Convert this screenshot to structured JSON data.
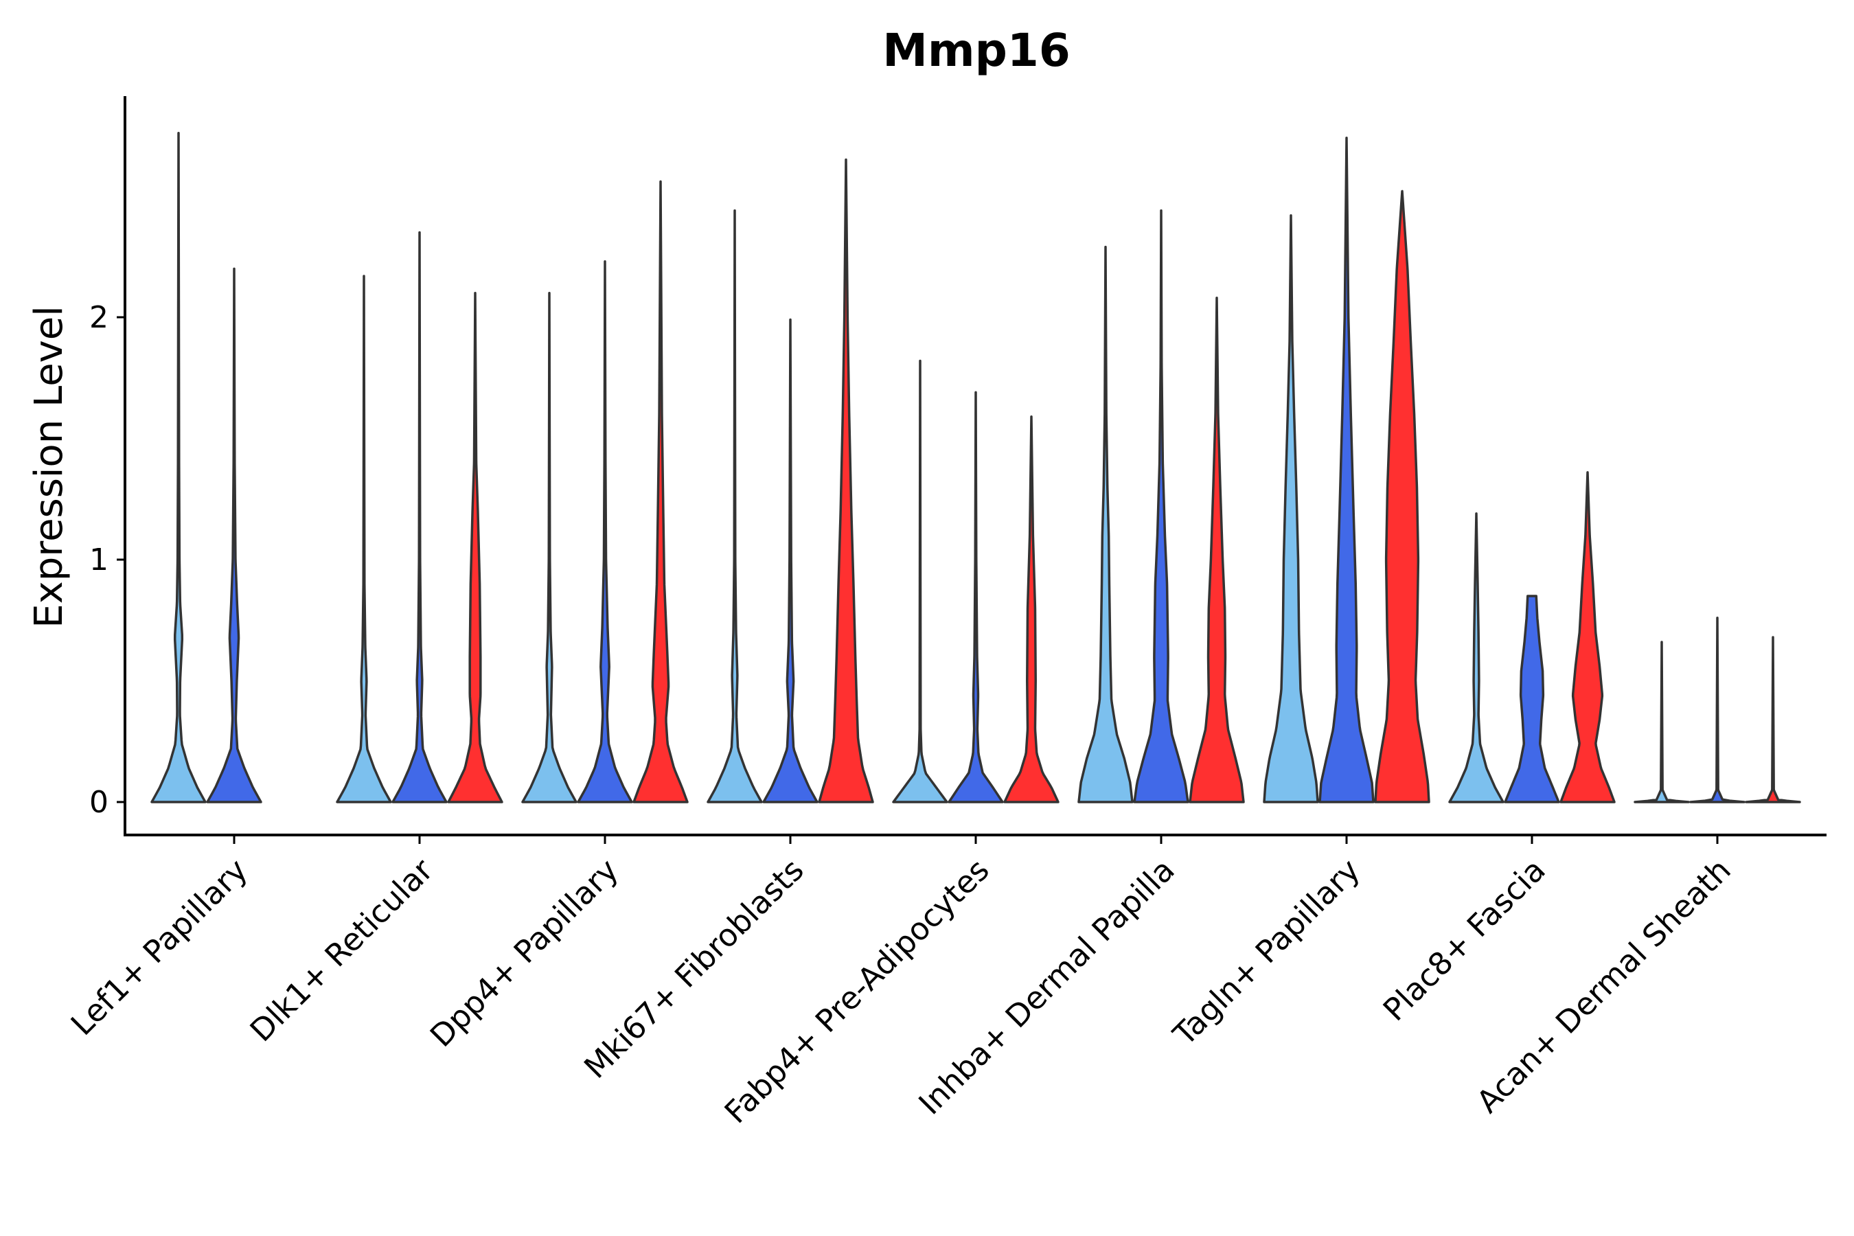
{
  "chart_data": {
    "type": "violin",
    "title": "Mmp16",
    "xlabel": "",
    "ylabel": "Expression Level",
    "ylim": [
      -0.14,
      2.92
    ],
    "yticks": [
      0,
      1,
      2
    ],
    "ytick_labels": [
      "0",
      "1",
      "2"
    ],
    "group_colors": {
      "group1": "#7CC0EE",
      "group2": "#4169E8",
      "group3": "#FF3030"
    },
    "categories": [
      "Lef1+ Papillary",
      "Dlk1+ Reticular",
      "Dpp4+ Papillary",
      "Mki67+ Fibroblasts",
      "Fabp4+ Pre-Adipocytes",
      "Inhba+ Dermal Papilla",
      "Tagln+ Papillary",
      "Plac8+ Fascia",
      "Acan+ Dermal Sheath"
    ],
    "violins": [
      {
        "category": "Lef1+ Papillary",
        "group": "group1",
        "max": 2.76,
        "profile": [
          [
            0,
            1.0
          ],
          [
            0.06,
            0.7
          ],
          [
            0.14,
            0.38
          ],
          [
            0.24,
            0.12
          ],
          [
            0.36,
            0.05
          ],
          [
            0.5,
            0.06
          ],
          [
            0.68,
            0.14
          ],
          [
            0.82,
            0.06
          ],
          [
            1.0,
            0.035
          ],
          [
            1.4,
            0.02
          ],
          [
            2.0,
            0.012
          ],
          [
            2.76,
            0.0
          ]
        ]
      },
      {
        "category": "Lef1+ Papillary",
        "group": "group2",
        "max": 2.2,
        "profile": [
          [
            0,
            1.0
          ],
          [
            0.06,
            0.7
          ],
          [
            0.14,
            0.38
          ],
          [
            0.22,
            0.12
          ],
          [
            0.34,
            0.06
          ],
          [
            0.5,
            0.1
          ],
          [
            0.68,
            0.17
          ],
          [
            0.82,
            0.11
          ],
          [
            1.0,
            0.05
          ],
          [
            1.4,
            0.02
          ],
          [
            2.2,
            0.0
          ]
        ]
      },
      {
        "category": "Dlk1+ Reticular",
        "group": "group1",
        "max": 2.17,
        "profile": [
          [
            0,
            1.0
          ],
          [
            0.06,
            0.7
          ],
          [
            0.14,
            0.38
          ],
          [
            0.22,
            0.12
          ],
          [
            0.36,
            0.06
          ],
          [
            0.5,
            0.1
          ],
          [
            0.64,
            0.05
          ],
          [
            0.9,
            0.02
          ],
          [
            2.17,
            0.0
          ]
        ]
      },
      {
        "category": "Dlk1+ Reticular",
        "group": "group2",
        "max": 2.35,
        "profile": [
          [
            0,
            1.0
          ],
          [
            0.06,
            0.7
          ],
          [
            0.14,
            0.38
          ],
          [
            0.22,
            0.12
          ],
          [
            0.36,
            0.06
          ],
          [
            0.5,
            0.1
          ],
          [
            0.64,
            0.05
          ],
          [
            1.0,
            0.02
          ],
          [
            2.35,
            0.0
          ]
        ]
      },
      {
        "category": "Dlk1+ Reticular",
        "group": "group3",
        "max": 2.1,
        "profile": [
          [
            0,
            1.0
          ],
          [
            0.06,
            0.72
          ],
          [
            0.14,
            0.38
          ],
          [
            0.24,
            0.18
          ],
          [
            0.34,
            0.14
          ],
          [
            0.44,
            0.2
          ],
          [
            0.6,
            0.2
          ],
          [
            0.9,
            0.17
          ],
          [
            1.2,
            0.1
          ],
          [
            1.4,
            0.04
          ],
          [
            2.1,
            0.0
          ]
        ]
      },
      {
        "category": "Dpp4+ Papillary",
        "group": "group1",
        "max": 2.1,
        "profile": [
          [
            0,
            1.0
          ],
          [
            0.06,
            0.7
          ],
          [
            0.14,
            0.38
          ],
          [
            0.22,
            0.12
          ],
          [
            0.36,
            0.06
          ],
          [
            0.56,
            0.1
          ],
          [
            0.7,
            0.05
          ],
          [
            1.0,
            0.02
          ],
          [
            2.1,
            0.0
          ]
        ]
      },
      {
        "category": "Dpp4+ Papillary",
        "group": "group2",
        "max": 2.23,
        "profile": [
          [
            0,
            1.0
          ],
          [
            0.06,
            0.7
          ],
          [
            0.14,
            0.38
          ],
          [
            0.24,
            0.14
          ],
          [
            0.36,
            0.08
          ],
          [
            0.56,
            0.16
          ],
          [
            0.72,
            0.1
          ],
          [
            1.0,
            0.04
          ],
          [
            1.4,
            0.02
          ],
          [
            2.23,
            0.0
          ]
        ]
      },
      {
        "category": "Dpp4+ Papillary",
        "group": "group3",
        "max": 2.56,
        "profile": [
          [
            0,
            1.0
          ],
          [
            0.06,
            0.8
          ],
          [
            0.14,
            0.5
          ],
          [
            0.24,
            0.26
          ],
          [
            0.34,
            0.2
          ],
          [
            0.48,
            0.3
          ],
          [
            0.62,
            0.25
          ],
          [
            0.9,
            0.14
          ],
          [
            1.2,
            0.1
          ],
          [
            1.6,
            0.05
          ],
          [
            2.56,
            0.0
          ]
        ]
      },
      {
        "category": "Mki67+ Fibroblasts",
        "group": "group1",
        "max": 2.44,
        "profile": [
          [
            0,
            1.0
          ],
          [
            0.06,
            0.7
          ],
          [
            0.14,
            0.38
          ],
          [
            0.22,
            0.12
          ],
          [
            0.36,
            0.06
          ],
          [
            0.52,
            0.1
          ],
          [
            0.7,
            0.05
          ],
          [
            1.0,
            0.02
          ],
          [
            2.44,
            0.0
          ]
        ]
      },
      {
        "category": "Mki67+ Fibroblasts",
        "group": "group2",
        "max": 1.99,
        "profile": [
          [
            0,
            1.0
          ],
          [
            0.06,
            0.7
          ],
          [
            0.14,
            0.38
          ],
          [
            0.22,
            0.12
          ],
          [
            0.36,
            0.06
          ],
          [
            0.5,
            0.12
          ],
          [
            0.66,
            0.06
          ],
          [
            1.0,
            0.03
          ],
          [
            1.99,
            0.0
          ]
        ]
      },
      {
        "category": "Mki67+ Fibroblasts",
        "group": "group3",
        "max": 2.65,
        "profile": [
          [
            0,
            1.0
          ],
          [
            0.06,
            0.85
          ],
          [
            0.14,
            0.62
          ],
          [
            0.26,
            0.45
          ],
          [
            0.42,
            0.4
          ],
          [
            0.6,
            0.35
          ],
          [
            0.9,
            0.28
          ],
          [
            1.2,
            0.2
          ],
          [
            1.6,
            0.12
          ],
          [
            2.0,
            0.06
          ],
          [
            2.65,
            0.0
          ]
        ]
      },
      {
        "category": "Fabp4+ Pre-Adipocytes",
        "group": "group1",
        "max": 1.82,
        "profile": [
          [
            0,
            1.0
          ],
          [
            0.06,
            0.6
          ],
          [
            0.12,
            0.2
          ],
          [
            0.2,
            0.05
          ],
          [
            0.3,
            0.02
          ],
          [
            1.82,
            0.0
          ]
        ]
      },
      {
        "category": "Fabp4+ Pre-Adipocytes",
        "group": "group2",
        "max": 1.69,
        "profile": [
          [
            0,
            1.0
          ],
          [
            0.06,
            0.64
          ],
          [
            0.12,
            0.26
          ],
          [
            0.2,
            0.1
          ],
          [
            0.3,
            0.06
          ],
          [
            0.44,
            0.09
          ],
          [
            0.6,
            0.05
          ],
          [
            1.0,
            0.02
          ],
          [
            1.69,
            0.0
          ]
        ]
      },
      {
        "category": "Fabp4+ Pre-Adipocytes",
        "group": "group3",
        "max": 1.59,
        "profile": [
          [
            0,
            1.0
          ],
          [
            0.06,
            0.75
          ],
          [
            0.12,
            0.42
          ],
          [
            0.2,
            0.2
          ],
          [
            0.3,
            0.14
          ],
          [
            0.5,
            0.16
          ],
          [
            0.8,
            0.14
          ],
          [
            1.1,
            0.06
          ],
          [
            1.59,
            0.0
          ]
        ]
      },
      {
        "category": "Inhba+ Dermal Papilla",
        "group": "group1",
        "max": 2.29,
        "profile": [
          [
            0,
            1.0
          ],
          [
            0.08,
            0.92
          ],
          [
            0.18,
            0.7
          ],
          [
            0.28,
            0.42
          ],
          [
            0.42,
            0.22
          ],
          [
            0.6,
            0.18
          ],
          [
            0.9,
            0.14
          ],
          [
            1.1,
            0.12
          ],
          [
            1.3,
            0.07
          ],
          [
            1.6,
            0.03
          ],
          [
            2.29,
            0.0
          ]
        ]
      },
      {
        "category": "Inhba+ Dermal Papilla",
        "group": "group2",
        "max": 2.44,
        "profile": [
          [
            0,
            1.0
          ],
          [
            0.08,
            0.9
          ],
          [
            0.18,
            0.66
          ],
          [
            0.28,
            0.4
          ],
          [
            0.42,
            0.24
          ],
          [
            0.6,
            0.26
          ],
          [
            0.9,
            0.22
          ],
          [
            1.1,
            0.14
          ],
          [
            1.4,
            0.06
          ],
          [
            1.8,
            0.02
          ],
          [
            2.44,
            0.0
          ]
        ]
      },
      {
        "category": "Inhba+ Dermal Papilla",
        "group": "group3",
        "max": 2.08,
        "profile": [
          [
            0,
            1.0
          ],
          [
            0.08,
            0.92
          ],
          [
            0.18,
            0.7
          ],
          [
            0.3,
            0.42
          ],
          [
            0.44,
            0.3
          ],
          [
            0.6,
            0.32
          ],
          [
            0.8,
            0.3
          ],
          [
            1.0,
            0.22
          ],
          [
            1.3,
            0.13
          ],
          [
            1.6,
            0.05
          ],
          [
            2.08,
            0.0
          ]
        ]
      },
      {
        "category": "Tagln+ Papillary",
        "group": "group1",
        "max": 2.42,
        "profile": [
          [
            0,
            1.0
          ],
          [
            0.08,
            0.95
          ],
          [
            0.18,
            0.8
          ],
          [
            0.3,
            0.55
          ],
          [
            0.46,
            0.36
          ],
          [
            0.7,
            0.3
          ],
          [
            1.0,
            0.27
          ],
          [
            1.3,
            0.2
          ],
          [
            1.6,
            0.12
          ],
          [
            1.9,
            0.05
          ],
          [
            2.42,
            0.0
          ]
        ]
      },
      {
        "category": "Tagln+ Papillary",
        "group": "group2",
        "max": 2.74,
        "profile": [
          [
            0,
            1.0
          ],
          [
            0.08,
            0.95
          ],
          [
            0.18,
            0.75
          ],
          [
            0.3,
            0.5
          ],
          [
            0.44,
            0.36
          ],
          [
            0.64,
            0.38
          ],
          [
            0.9,
            0.34
          ],
          [
            1.2,
            0.26
          ],
          [
            1.6,
            0.16
          ],
          [
            2.0,
            0.07
          ],
          [
            2.74,
            0.0
          ]
        ]
      },
      {
        "category": "Tagln+ Papillary",
        "group": "group3",
        "max": 2.52,
        "profile": [
          [
            0,
            1.0
          ],
          [
            0.08,
            0.96
          ],
          [
            0.2,
            0.8
          ],
          [
            0.34,
            0.58
          ],
          [
            0.5,
            0.5
          ],
          [
            0.7,
            0.56
          ],
          [
            1.0,
            0.6
          ],
          [
            1.3,
            0.55
          ],
          [
            1.6,
            0.45
          ],
          [
            1.9,
            0.32
          ],
          [
            2.2,
            0.2
          ],
          [
            2.52,
            0.0
          ]
        ]
      },
      {
        "category": "Plac8+ Fascia",
        "group": "group1",
        "max": 1.19,
        "profile": [
          [
            0,
            1.0
          ],
          [
            0.06,
            0.7
          ],
          [
            0.14,
            0.38
          ],
          [
            0.24,
            0.14
          ],
          [
            0.36,
            0.08
          ],
          [
            0.5,
            0.1
          ],
          [
            0.7,
            0.08
          ],
          [
            0.9,
            0.05
          ],
          [
            1.19,
            0.0
          ]
        ]
      },
      {
        "category": "Plac8+ Fascia",
        "group": "group2",
        "max": 0.85,
        "profile": [
          [
            0,
            1.0
          ],
          [
            0.06,
            0.78
          ],
          [
            0.14,
            0.48
          ],
          [
            0.24,
            0.3
          ],
          [
            0.34,
            0.35
          ],
          [
            0.44,
            0.42
          ],
          [
            0.54,
            0.4
          ],
          [
            0.66,
            0.28
          ],
          [
            0.76,
            0.2
          ],
          [
            0.85,
            0.16
          ]
        ]
      },
      {
        "category": "Plac8+ Fascia",
        "group": "group3",
        "max": 1.36,
        "profile": [
          [
            0,
            1.0
          ],
          [
            0.06,
            0.8
          ],
          [
            0.14,
            0.5
          ],
          [
            0.24,
            0.3
          ],
          [
            0.34,
            0.45
          ],
          [
            0.44,
            0.55
          ],
          [
            0.56,
            0.45
          ],
          [
            0.7,
            0.3
          ],
          [
            0.9,
            0.2
          ],
          [
            1.1,
            0.08
          ],
          [
            1.36,
            0.0
          ]
        ]
      },
      {
        "category": "Acan+ Dermal Sheath",
        "group": "group1",
        "max": 0.66,
        "profile": [
          [
            0,
            1.0
          ],
          [
            0.008,
            0.2
          ],
          [
            0.05,
            0.03
          ],
          [
            0.66,
            0.0
          ]
        ]
      },
      {
        "category": "Acan+ Dermal Sheath",
        "group": "group2",
        "max": 0.76,
        "profile": [
          [
            0,
            1.0
          ],
          [
            0.008,
            0.2
          ],
          [
            0.05,
            0.03
          ],
          [
            0.76,
            0.0
          ]
        ]
      },
      {
        "category": "Acan+ Dermal Sheath",
        "group": "group3",
        "max": 0.68,
        "profile": [
          [
            0,
            1.0
          ],
          [
            0.008,
            0.2
          ],
          [
            0.05,
            0.03
          ],
          [
            0.68,
            0.0
          ]
        ]
      }
    ]
  }
}
